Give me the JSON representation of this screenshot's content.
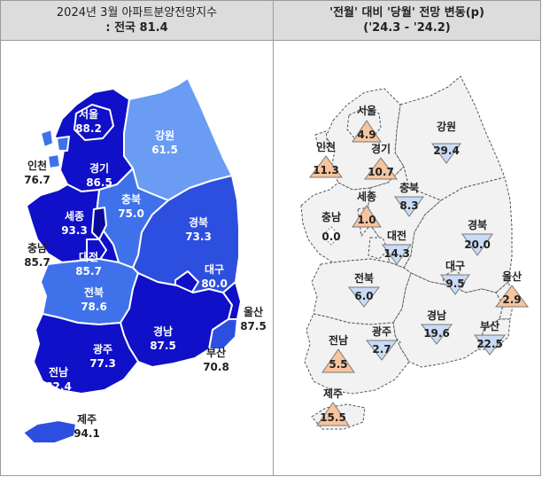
{
  "header": {
    "left_line1": "2024년 3월 아파트분양전망지수",
    "left_line2": ": 전국 81.4",
    "right_line1": "'전월' 대비 '당월' 전망 변동(p)",
    "right_line2": "('24.3  -  '24.2)"
  },
  "colors": {
    "very_dark": "#1010c8",
    "dark": "#2d4fe0",
    "medium": "#3f72ea",
    "light": "#6a9cf4",
    "border": "#ffffff",
    "up_fill": "#f7c49e",
    "down_fill": "#c9dbf5",
    "flat_fill": "#ffffff"
  },
  "left_map": {
    "regions": [
      {
        "name": "서울",
        "value": "88.2"
      },
      {
        "name": "인천",
        "value": "76.7"
      },
      {
        "name": "경기",
        "value": "86.5"
      },
      {
        "name": "강원",
        "value": "61.5"
      },
      {
        "name": "세종",
        "value": "93.3"
      },
      {
        "name": "충북",
        "value": "75.0"
      },
      {
        "name": "충남",
        "value": "85.7"
      },
      {
        "name": "대전",
        "value": "85.7"
      },
      {
        "name": "경북",
        "value": "73.3"
      },
      {
        "name": "대구",
        "value": "80.0"
      },
      {
        "name": "전북",
        "value": "78.6"
      },
      {
        "name": "울산",
        "value": "87.5"
      },
      {
        "name": "경남",
        "value": "87.5"
      },
      {
        "name": "광주",
        "value": "77.3"
      },
      {
        "name": "부산",
        "value": "70.8"
      },
      {
        "name": "전남",
        "value": "82.4"
      },
      {
        "name": "제주",
        "value": "94.1"
      }
    ]
  },
  "right_map": {
    "regions": [
      {
        "name": "서울",
        "value": "4.9",
        "direction": "up"
      },
      {
        "name": "강원",
        "value": "29.4",
        "direction": "down"
      },
      {
        "name": "인천",
        "value": "11.3",
        "direction": "up"
      },
      {
        "name": "경기",
        "value": "10.7",
        "direction": "up"
      },
      {
        "name": "세종",
        "value": "1.0",
        "direction": "up"
      },
      {
        "name": "충북",
        "value": "8.3",
        "direction": "down"
      },
      {
        "name": "충남",
        "value": "0.0",
        "direction": "flat"
      },
      {
        "name": "대전",
        "value": "14.3",
        "direction": "down"
      },
      {
        "name": "경북",
        "value": "20.0",
        "direction": "down"
      },
      {
        "name": "대구",
        "value": "9.5",
        "direction": "down"
      },
      {
        "name": "전북",
        "value": "6.0",
        "direction": "down"
      },
      {
        "name": "울산",
        "value": "2.9",
        "direction": "up"
      },
      {
        "name": "광주",
        "value": "2.7",
        "direction": "down"
      },
      {
        "name": "경남",
        "value": "19.6",
        "direction": "down"
      },
      {
        "name": "전남",
        "value": "5.5",
        "direction": "up"
      },
      {
        "name": "부산",
        "value": "22.5",
        "direction": "down"
      },
      {
        "name": "제주",
        "value": "15.5",
        "direction": "up"
      }
    ]
  }
}
